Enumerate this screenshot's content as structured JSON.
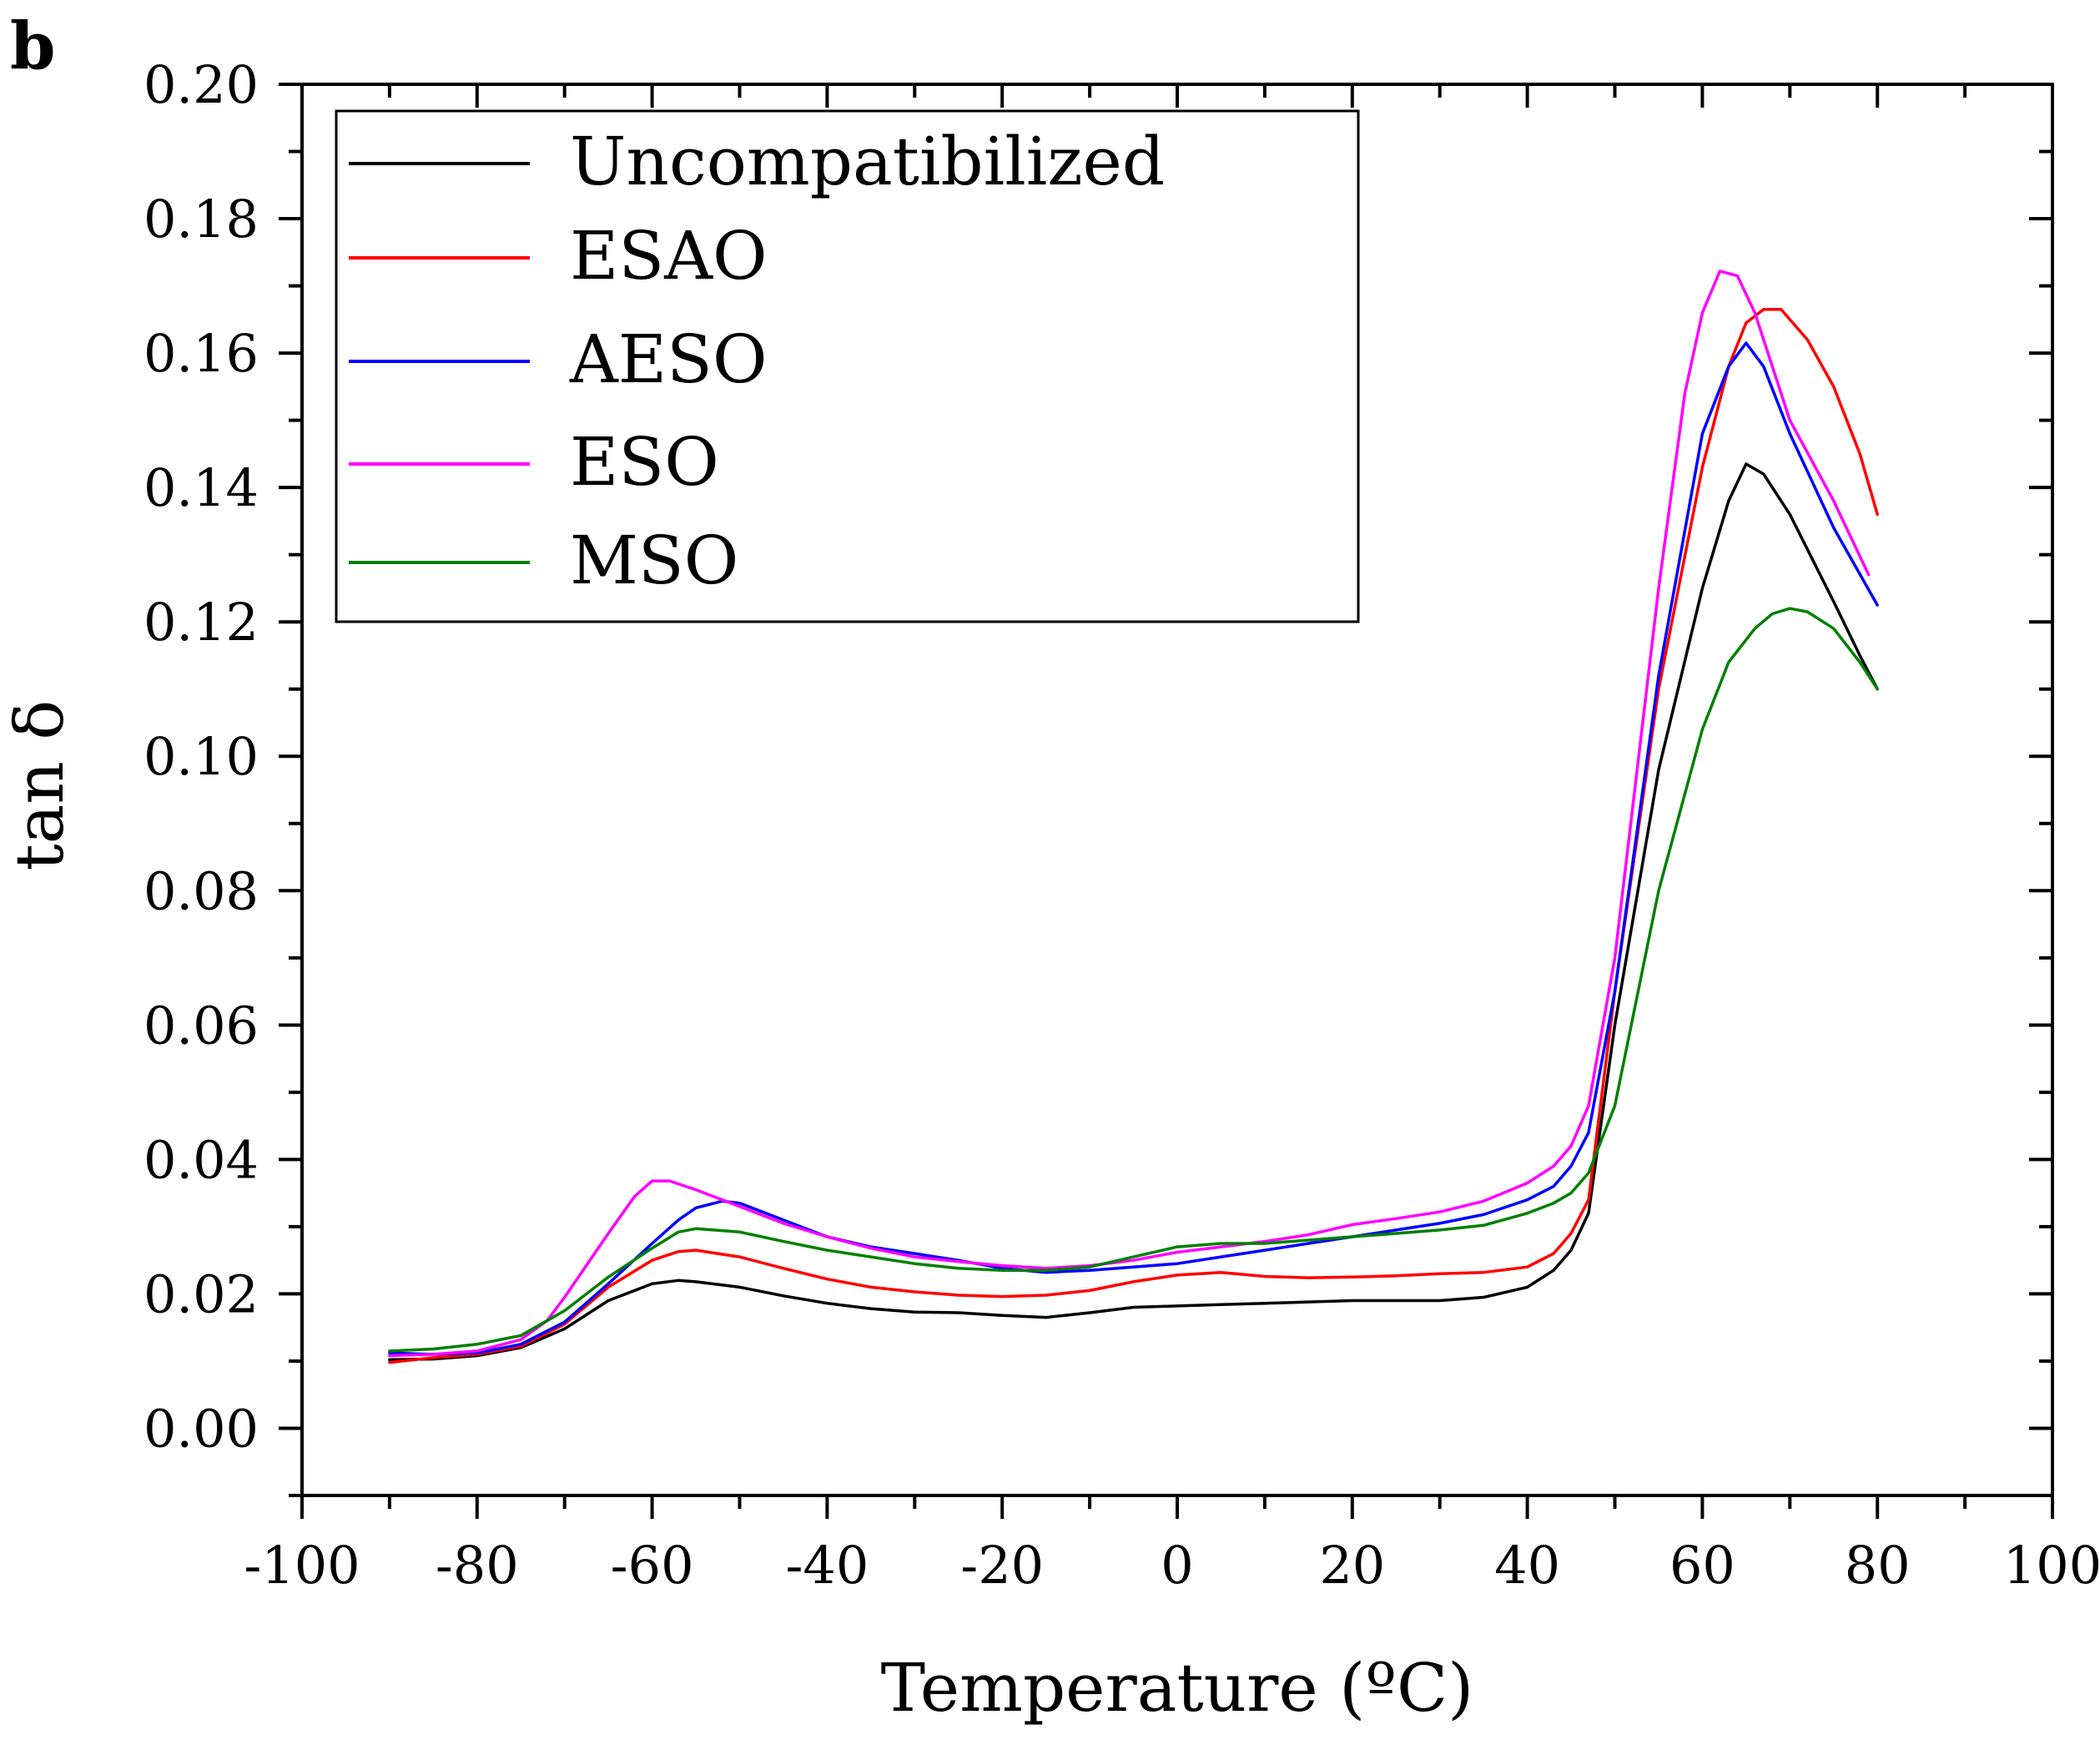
{
  "panel_label": "b",
  "chart_data": {
    "type": "line",
    "title": "",
    "xlabel": "Temperature (ºC)",
    "ylabel": "tan δ",
    "xlim": [
      -100,
      100
    ],
    "ylim": [
      -0.01,
      0.2
    ],
    "xticks": [
      -100,
      -80,
      -60,
      -40,
      -20,
      0,
      20,
      40,
      60,
      80,
      100
    ],
    "xtick_labels": [
      "-100",
      "-80",
      "-60",
      "-40",
      "-20",
      "0",
      "20",
      "40",
      "60",
      "80",
      "100"
    ],
    "yticks": [
      0.0,
      0.02,
      0.04,
      0.06,
      0.08,
      0.1,
      0.12,
      0.14,
      0.16,
      0.18,
      0.2
    ],
    "ytick_labels": [
      "0.00",
      "0.02",
      "0.04",
      "0.06",
      "0.08",
      "0.10",
      "0.12",
      "0.14",
      "0.16",
      "0.18",
      "0.20"
    ],
    "grid": false,
    "legend_position": "top-left",
    "series": [
      {
        "name": "Uncompatibilized",
        "color": "#000000",
        "x": [
          -90,
          -85,
          -80,
          -75,
          -70,
          -65,
          -60,
          -57,
          -55,
          -50,
          -45,
          -40,
          -35,
          -30,
          -25,
          -20,
          -15,
          -10,
          -5,
          0,
          5,
          10,
          15,
          20,
          25,
          30,
          35,
          40,
          43,
          45,
          47,
          50,
          55,
          60,
          63,
          65,
          67,
          70,
          75,
          78,
          80
        ],
        "y": [
          0.0102,
          0.0103,
          0.0108,
          0.012,
          0.0148,
          0.019,
          0.0215,
          0.022,
          0.0218,
          0.021,
          0.0197,
          0.0186,
          0.0178,
          0.0173,
          0.0172,
          0.0168,
          0.0165,
          0.0172,
          0.018,
          0.0182,
          0.0184,
          0.0186,
          0.0188,
          0.019,
          0.019,
          0.019,
          0.0195,
          0.021,
          0.0235,
          0.0265,
          0.032,
          0.06,
          0.098,
          0.125,
          0.138,
          0.1435,
          0.142,
          0.136,
          0.123,
          0.115,
          0.11
        ]
      },
      {
        "name": "ESAO",
        "color": "#ff0000",
        "x": [
          -90,
          -85,
          -80,
          -75,
          -70,
          -65,
          -60,
          -57,
          -55,
          -50,
          -45,
          -40,
          -35,
          -30,
          -25,
          -20,
          -15,
          -10,
          -5,
          0,
          5,
          10,
          15,
          20,
          25,
          30,
          35,
          40,
          43,
          45,
          47,
          50,
          55,
          60,
          63,
          65,
          67,
          69,
          72,
          75,
          78,
          80
        ],
        "y": [
          0.0098,
          0.0105,
          0.011,
          0.0122,
          0.0155,
          0.021,
          0.025,
          0.0263,
          0.0265,
          0.0255,
          0.0238,
          0.0222,
          0.021,
          0.0203,
          0.0198,
          0.0196,
          0.0198,
          0.0205,
          0.0218,
          0.0228,
          0.0232,
          0.0226,
          0.0224,
          0.0225,
          0.0227,
          0.023,
          0.0232,
          0.024,
          0.026,
          0.029,
          0.034,
          0.065,
          0.11,
          0.143,
          0.158,
          0.1645,
          0.1665,
          0.1665,
          0.162,
          0.155,
          0.145,
          0.136
        ]
      },
      {
        "name": "AESO",
        "color": "#0000ff",
        "x": [
          -90,
          -85,
          -80,
          -75,
          -70,
          -65,
          -60,
          -57,
          -55,
          -52,
          -50,
          -45,
          -40,
          -35,
          -30,
          -25,
          -20,
          -15,
          -10,
          -5,
          0,
          5,
          10,
          15,
          20,
          25,
          30,
          35,
          40,
          43,
          45,
          47,
          50,
          55,
          60,
          63,
          65,
          67,
          70,
          75,
          80
        ],
        "y": [
          0.0112,
          0.011,
          0.0112,
          0.0125,
          0.0158,
          0.0215,
          0.0275,
          0.031,
          0.0328,
          0.0338,
          0.0335,
          0.031,
          0.0285,
          0.027,
          0.026,
          0.025,
          0.0238,
          0.0232,
          0.0235,
          0.024,
          0.0245,
          0.0255,
          0.0265,
          0.0275,
          0.0285,
          0.0295,
          0.0305,
          0.0318,
          0.034,
          0.036,
          0.039,
          0.044,
          0.065,
          0.112,
          0.148,
          0.158,
          0.1615,
          0.158,
          0.148,
          0.134,
          0.1225
        ]
      },
      {
        "name": "ESO",
        "color": "#ff00ff",
        "x": [
          -90,
          -85,
          -80,
          -75,
          -72,
          -70,
          -65,
          -62,
          -60,
          -58,
          -55,
          -50,
          -45,
          -40,
          -35,
          -30,
          -25,
          -20,
          -15,
          -10,
          -5,
          0,
          5,
          10,
          15,
          20,
          25,
          30,
          35,
          40,
          43,
          45,
          47,
          50,
          55,
          58,
          60,
          62,
          64,
          66,
          70,
          75,
          79
        ],
        "y": [
          0.0108,
          0.011,
          0.0115,
          0.0132,
          0.016,
          0.0195,
          0.029,
          0.0345,
          0.0368,
          0.0368,
          0.0355,
          0.033,
          0.0305,
          0.0285,
          0.0268,
          0.0255,
          0.0248,
          0.0242,
          0.0238,
          0.0242,
          0.025,
          0.0262,
          0.027,
          0.0278,
          0.0288,
          0.0303,
          0.0312,
          0.0322,
          0.0338,
          0.0365,
          0.039,
          0.042,
          0.048,
          0.07,
          0.125,
          0.154,
          0.166,
          0.1722,
          0.1715,
          0.166,
          0.15,
          0.138,
          0.127
        ]
      },
      {
        "name": "MSO",
        "color": "#008000",
        "x": [
          -90,
          -85,
          -80,
          -75,
          -70,
          -65,
          -60,
          -57,
          -55,
          -50,
          -45,
          -40,
          -35,
          -30,
          -25,
          -20,
          -15,
          -10,
          -5,
          0,
          5,
          10,
          15,
          20,
          25,
          30,
          35,
          40,
          43,
          45,
          47,
          50,
          55,
          60,
          63,
          66,
          68,
          70,
          72,
          75,
          78,
          80
        ],
        "y": [
          0.0115,
          0.0118,
          0.0125,
          0.0138,
          0.0175,
          0.0225,
          0.0268,
          0.0292,
          0.0297,
          0.0292,
          0.0278,
          0.0265,
          0.0255,
          0.0245,
          0.0238,
          0.0235,
          0.0235,
          0.024,
          0.0255,
          0.027,
          0.0275,
          0.0275,
          0.028,
          0.0285,
          0.029,
          0.0295,
          0.0302,
          0.032,
          0.0335,
          0.035,
          0.038,
          0.048,
          0.08,
          0.104,
          0.114,
          0.119,
          0.1212,
          0.122,
          0.1215,
          0.119,
          0.114,
          0.11
        ]
      }
    ]
  }
}
